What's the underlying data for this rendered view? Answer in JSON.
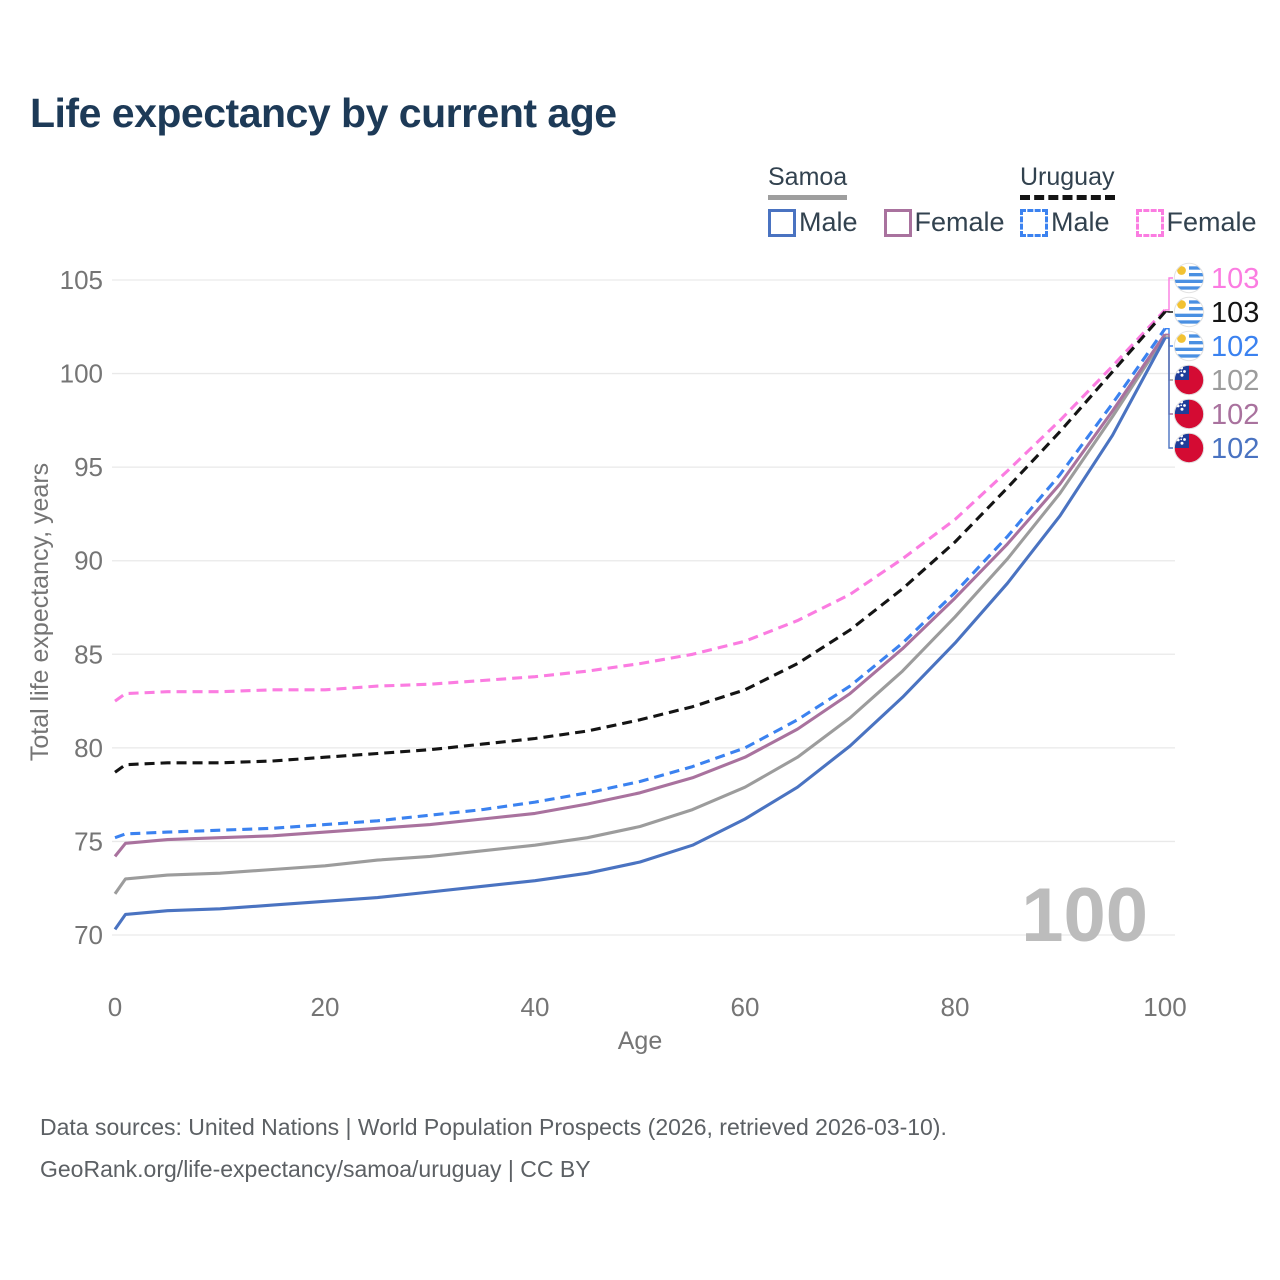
{
  "title": "Life expectancy by current age",
  "legend": {
    "groups": [
      {
        "name": "Samoa",
        "line_style": "solid",
        "underline_color": "#9e9e9e",
        "items": [
          {
            "label": "Male",
            "color": "#4a73c1",
            "dashed": false
          },
          {
            "label": "Female",
            "color": "#a9729e",
            "dashed": false
          }
        ]
      },
      {
        "name": "Uruguay",
        "line_style": "dashed",
        "underline_color": "#141414",
        "items": [
          {
            "label": "Male",
            "color": "#3b82f0",
            "dashed": true
          },
          {
            "label": "Female",
            "color": "#fb7ce1",
            "dashed": true
          }
        ]
      }
    ]
  },
  "watermark": "100",
  "footer": {
    "line1": "Data sources: United Nations | World Population Prospects (2026, retrieved 2026-03-10).",
    "line2": "GeoRank.org/life-expectancy/samoa/uruguay | CC BY"
  },
  "chart_data": {
    "type": "line",
    "title": "Life expectancy by current age",
    "xlabel": "Age",
    "ylabel": "Total life expectancy, years",
    "xlim": [
      0,
      100
    ],
    "ylim": [
      70,
      105
    ],
    "x_ticks": [
      0,
      20,
      40,
      60,
      80,
      100
    ],
    "y_ticks": [
      70,
      75,
      80,
      85,
      90,
      95,
      100,
      105
    ],
    "grid": "horizontal-only",
    "legend_position": "top-right",
    "x": [
      0,
      1,
      5,
      10,
      15,
      20,
      25,
      30,
      35,
      40,
      45,
      50,
      55,
      60,
      65,
      70,
      75,
      80,
      85,
      90,
      95,
      100
    ],
    "series": [
      {
        "name": "Uruguay Female",
        "flag": "uruguay",
        "color": "#fb7ce1",
        "dashed": true,
        "end_label": "103",
        "values": [
          82.5,
          82.9,
          83.0,
          83.0,
          83.1,
          83.1,
          83.3,
          83.4,
          83.6,
          83.8,
          84.1,
          84.5,
          85.0,
          85.7,
          86.8,
          88.2,
          90.1,
          92.2,
          94.8,
          97.5,
          100.4,
          103.4
        ]
      },
      {
        "name": "Uruguay",
        "flag": "uruguay",
        "color": "#141414",
        "dashed": true,
        "end_label": "103",
        "values": [
          78.7,
          79.1,
          79.2,
          79.2,
          79.3,
          79.5,
          79.7,
          79.9,
          80.2,
          80.5,
          80.9,
          81.5,
          82.2,
          83.1,
          84.5,
          86.3,
          88.5,
          91.0,
          93.9,
          96.9,
          100.1,
          103.3
        ]
      },
      {
        "name": "Uruguay Male",
        "flag": "uruguay",
        "color": "#3b82f0",
        "dashed": true,
        "end_label": "102",
        "values": [
          75.2,
          75.4,
          75.5,
          75.6,
          75.7,
          75.9,
          76.1,
          76.4,
          76.7,
          77.1,
          77.6,
          78.2,
          79.0,
          80.0,
          81.5,
          83.3,
          85.6,
          88.3,
          91.3,
          94.6,
          98.4,
          102.4
        ]
      },
      {
        "name": "Samoa",
        "flag": "samoa",
        "color": "#9c9c9c",
        "dashed": false,
        "end_label": "102",
        "values": [
          72.2,
          73.0,
          73.2,
          73.3,
          73.5,
          73.7,
          74.0,
          74.2,
          74.5,
          74.8,
          75.2,
          75.8,
          76.7,
          77.9,
          79.5,
          81.6,
          84.1,
          87.0,
          90.1,
          93.6,
          97.7,
          102.0
        ]
      },
      {
        "name": "Samoa Female",
        "flag": "samoa",
        "color": "#a9729e",
        "dashed": false,
        "end_label": "102",
        "values": [
          74.2,
          74.9,
          75.1,
          75.2,
          75.3,
          75.5,
          75.7,
          75.9,
          76.2,
          76.5,
          77.0,
          77.6,
          78.4,
          79.5,
          81.0,
          82.9,
          85.3,
          88.0,
          90.9,
          94.1,
          98.0,
          102.1
        ]
      },
      {
        "name": "Samoa Male",
        "flag": "samoa",
        "color": "#4a73c1",
        "dashed": false,
        "end_label": "102",
        "values": [
          70.3,
          71.1,
          71.3,
          71.4,
          71.6,
          71.8,
          72.0,
          72.3,
          72.6,
          72.9,
          73.3,
          73.9,
          74.8,
          76.2,
          77.9,
          80.1,
          82.7,
          85.6,
          88.8,
          92.4,
          96.7,
          101.9
        ]
      }
    ],
    "flag_colors": {
      "uruguay_stripe": "#4a90e2",
      "uruguay_sun": "#f2c233",
      "samoa_red": "#d40b33",
      "samoa_canton": "#1f3d99"
    },
    "text_colors": {
      "axis": "#757575",
      "watermark": "#bcbcbc",
      "grid": "#e9e9e9"
    }
  }
}
